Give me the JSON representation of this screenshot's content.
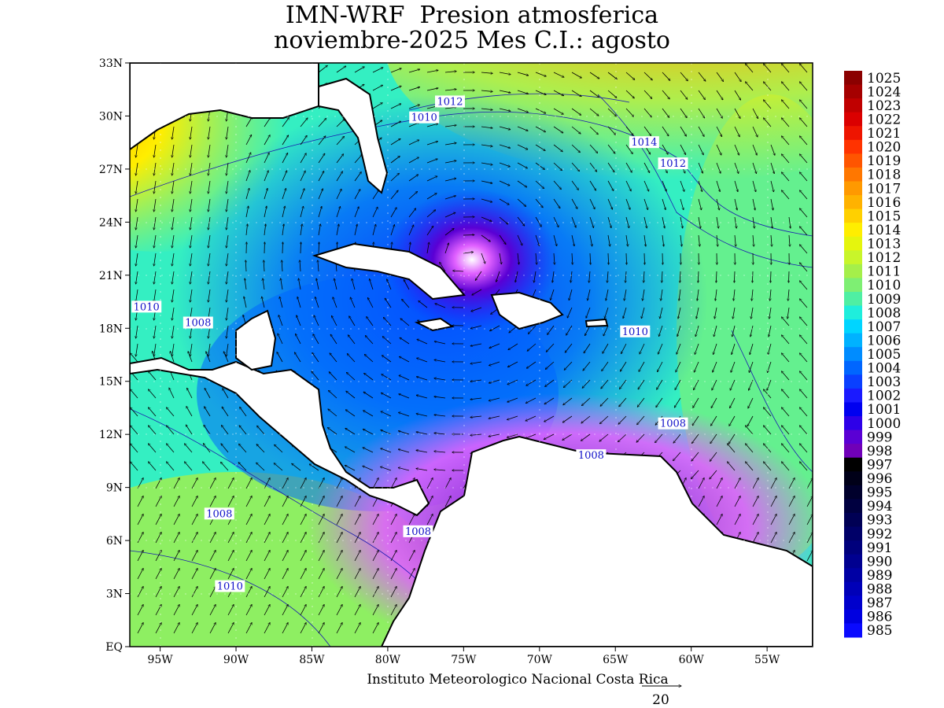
{
  "title": {
    "line1": "IMN-WRF  Presion atmosferica",
    "line2": "noviembre-2025 Mes C.I.: agosto"
  },
  "credit": "Instituto Meteorologico Nacional Costa Rica",
  "wind_scale": {
    "value": "20"
  },
  "axes": {
    "lat_labels": [
      "33N",
      "30N",
      "27N",
      "24N",
      "21N",
      "18N",
      "15N",
      "12N",
      "9N",
      "6N",
      "3N",
      "EQ"
    ],
    "lon_labels": [
      "95W",
      "90W",
      "85W",
      "80W",
      "75W",
      "70W",
      "65W",
      "60W",
      "55W"
    ]
  },
  "contour_labels": [
    {
      "text": "1012",
      "lon": -75.9,
      "lat": 30.8
    },
    {
      "text": "1010",
      "lon": -77.6,
      "lat": 29.9
    },
    {
      "text": "1014",
      "lon": -63.1,
      "lat": 28.5
    },
    {
      "text": "1012",
      "lon": -61.2,
      "lat": 27.3
    },
    {
      "text": "1010",
      "lon": -95.9,
      "lat": 19.2
    },
    {
      "text": "1008",
      "lon": -92.5,
      "lat": 18.3
    },
    {
      "text": "1010",
      "lon": -63.7,
      "lat": 17.8
    },
    {
      "text": "1008",
      "lon": -61.2,
      "lat": 12.6
    },
    {
      "text": "1008",
      "lon": -66.6,
      "lat": 10.8
    },
    {
      "text": "1008",
      "lon": -91.1,
      "lat": 7.5
    },
    {
      "text": "1008",
      "lon": -78.0,
      "lat": 6.5
    },
    {
      "text": "1010",
      "lon": -90.4,
      "lat": 3.4
    }
  ],
  "colorbar": {
    "labels": [
      "1025",
      "1024",
      "1023",
      "1022",
      "1021",
      "1020",
      "1019",
      "1018",
      "1017",
      "1016",
      "1015",
      "1014",
      "1013",
      "1012",
      "1011",
      "1010",
      "1009",
      "1008",
      "1007",
      "1006",
      "1005",
      "1004",
      "1003",
      "1002",
      "1001",
      "1000",
      "999",
      "998",
      "997",
      "996",
      "995",
      "994",
      "993",
      "992",
      "991",
      "990",
      "989",
      "988",
      "987",
      "986",
      "985"
    ],
    "colors": [
      "#8b0000",
      "#a50000",
      "#c00000",
      "#db0000",
      "#ee1500",
      "#ff3300",
      "#ff5500",
      "#ff7700",
      "#ff9900",
      "#ffb200",
      "#ffd000",
      "#ffee00",
      "#e5f50d",
      "#c8f52a",
      "#a5ef4a",
      "#7eef73",
      "#4fefa3",
      "#1feedc",
      "#00d5ff",
      "#00b2ff",
      "#008cff",
      "#0066ff",
      "#0a40ff",
      "#1a1aff",
      "#0000f0",
      "#2e00e8",
      "#5a00d4",
      "#7000b8",
      "#000000",
      "#000018",
      "#00002c",
      "#000040",
      "#000054",
      "#000068",
      "#00007c",
      "#000090",
      "#0000a4",
      "#0000b8",
      "#0000cc",
      "#0000e0",
      "#0a0aff"
    ]
  }
}
